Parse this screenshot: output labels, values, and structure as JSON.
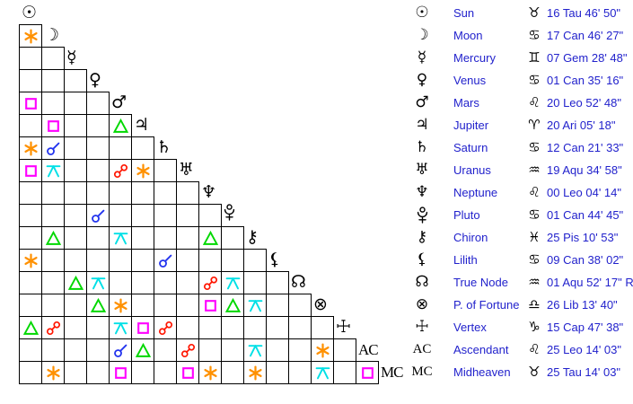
{
  "chart_data": {
    "type": "table",
    "title": "Astrological aspect grid (aspectarian) with planet positions",
    "aspect_legend": {
      "conjunction": "#2233ee",
      "sextile": "#ff9100",
      "square": "#ff00ff",
      "trine": "#00d800",
      "opposition": "#ff1500",
      "quincunx": "#00e0e6"
    },
    "text_color": "#2222cc",
    "grid_line_color": "#000000",
    "planets": [
      {
        "name": "Sun",
        "glyph": "☉",
        "sign": "Taurus",
        "sign_glyph": "♉",
        "position": "16 Tau 46' 50\""
      },
      {
        "name": "Moon",
        "glyph": "☽",
        "sign": "Cancer",
        "sign_glyph": "♋",
        "position": "17 Can 46' 27\""
      },
      {
        "name": "Mercury",
        "glyph": "☿",
        "sign": "Gemini",
        "sign_glyph": "♊",
        "position": "07 Gem 28' 48\""
      },
      {
        "name": "Venus",
        "glyph": "♀",
        "sign": "Cancer",
        "sign_glyph": "♋",
        "position": "01 Can 35' 16\""
      },
      {
        "name": "Mars",
        "glyph": "♂",
        "sign": "Leo",
        "sign_glyph": "♌",
        "position": "20 Leo 52' 48\""
      },
      {
        "name": "Jupiter",
        "glyph": "♃",
        "sign": "Aries",
        "sign_glyph": "♈",
        "position": "20 Ari 05' 18\""
      },
      {
        "name": "Saturn",
        "glyph": "♄",
        "sign": "Cancer",
        "sign_glyph": "♋",
        "position": "12 Can 21' 33\""
      },
      {
        "name": "Uranus",
        "glyph": "♅",
        "sign": "Aquarius",
        "sign_glyph": "♒",
        "position": "19 Aqu 34' 58\""
      },
      {
        "name": "Neptune",
        "glyph": "♆",
        "sign": "Leo",
        "sign_glyph": "♌",
        "position": "00 Leo 04' 14\""
      },
      {
        "name": "Pluto",
        "glyph": "⯓",
        "sign": "Cancer",
        "sign_glyph": "♋",
        "position": "01 Can 44' 45\""
      },
      {
        "name": "Chiron",
        "glyph": "⚷",
        "sign": "Pisces",
        "sign_glyph": "♓",
        "position": "25 Pis 10' 53\""
      },
      {
        "name": "Lilith",
        "glyph": "⚸",
        "sign": "Cancer",
        "sign_glyph": "♋",
        "position": "09 Can 38' 02\""
      },
      {
        "name": "True Node",
        "glyph": "☊",
        "sign": "Aquarius",
        "sign_glyph": "♒",
        "position": "01 Aqu 52' 17\" R"
      },
      {
        "name": "P. of Fortune",
        "glyph": "⊗",
        "sign": "Libra",
        "sign_glyph": "♎",
        "position": "26 Lib 13' 40\""
      },
      {
        "name": "Vertex",
        "glyph": "☩",
        "sign": "Capricorn",
        "sign_glyph": "♑",
        "position": "15 Cap 47' 38\""
      },
      {
        "name": "Ascendant",
        "glyph": "AC",
        "sign": "Leo",
        "sign_glyph": "♌",
        "position": "25 Leo 14' 03\""
      },
      {
        "name": "Midheaven",
        "glyph": "MC",
        "sign": "Taurus",
        "sign_glyph": "♉",
        "position": "25 Tau 14' 03\""
      }
    ],
    "aspects": [
      {
        "row": 2,
        "col": 1,
        "type": "sextile"
      },
      {
        "row": 5,
        "col": 1,
        "type": "square"
      },
      {
        "row": 6,
        "col": 2,
        "type": "square"
      },
      {
        "row": 6,
        "col": 5,
        "type": "trine"
      },
      {
        "row": 7,
        "col": 1,
        "type": "sextile"
      },
      {
        "row": 7,
        "col": 2,
        "type": "conjunction"
      },
      {
        "row": 8,
        "col": 1,
        "type": "square"
      },
      {
        "row": 8,
        "col": 2,
        "type": "quincunx"
      },
      {
        "row": 8,
        "col": 5,
        "type": "opposition"
      },
      {
        "row": 8,
        "col": 6,
        "type": "sextile"
      },
      {
        "row": 10,
        "col": 4,
        "type": "conjunction"
      },
      {
        "row": 11,
        "col": 2,
        "type": "trine"
      },
      {
        "row": 11,
        "col": 5,
        "type": "quincunx"
      },
      {
        "row": 11,
        "col": 9,
        "type": "trine"
      },
      {
        "row": 12,
        "col": 1,
        "type": "sextile"
      },
      {
        "row": 12,
        "col": 7,
        "type": "conjunction"
      },
      {
        "row": 13,
        "col": 3,
        "type": "trine"
      },
      {
        "row": 13,
        "col": 4,
        "type": "quincunx"
      },
      {
        "row": 13,
        "col": 9,
        "type": "opposition"
      },
      {
        "row": 13,
        "col": 10,
        "type": "quincunx"
      },
      {
        "row": 14,
        "col": 4,
        "type": "trine"
      },
      {
        "row": 14,
        "col": 5,
        "type": "sextile"
      },
      {
        "row": 14,
        "col": 9,
        "type": "square"
      },
      {
        "row": 14,
        "col": 10,
        "type": "trine"
      },
      {
        "row": 14,
        "col": 11,
        "type": "quincunx"
      },
      {
        "row": 15,
        "col": 1,
        "type": "trine"
      },
      {
        "row": 15,
        "col": 2,
        "type": "opposition"
      },
      {
        "row": 15,
        "col": 5,
        "type": "quincunx"
      },
      {
        "row": 15,
        "col": 6,
        "type": "square"
      },
      {
        "row": 15,
        "col": 7,
        "type": "opposition"
      },
      {
        "row": 16,
        "col": 5,
        "type": "conjunction"
      },
      {
        "row": 16,
        "col": 6,
        "type": "trine"
      },
      {
        "row": 16,
        "col": 8,
        "type": "opposition"
      },
      {
        "row": 16,
        "col": 11,
        "type": "quincunx"
      },
      {
        "row": 16,
        "col": 14,
        "type": "sextile"
      },
      {
        "row": 17,
        "col": 2,
        "type": "sextile"
      },
      {
        "row": 17,
        "col": 5,
        "type": "square"
      },
      {
        "row": 17,
        "col": 8,
        "type": "square"
      },
      {
        "row": 17,
        "col": 9,
        "type": "sextile"
      },
      {
        "row": 17,
        "col": 11,
        "type": "sextile"
      },
      {
        "row": 17,
        "col": 14,
        "type": "quincunx"
      },
      {
        "row": 17,
        "col": 16,
        "type": "square"
      }
    ]
  }
}
